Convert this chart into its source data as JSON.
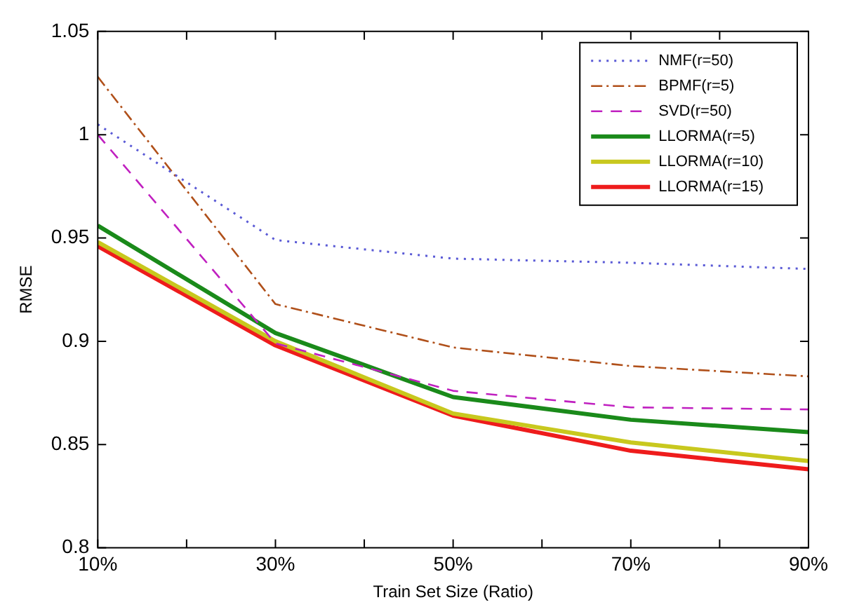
{
  "chart_data": {
    "type": "line",
    "xlabel": "Train Set Size (Ratio)",
    "ylabel": "RMSE",
    "x": [
      10,
      30,
      50,
      70,
      90
    ],
    "xlim": [
      10,
      90
    ],
    "xticks": [
      {
        "value": 10,
        "label": "10%"
      },
      {
        "value": 20,
        "label": null
      },
      {
        "value": 30,
        "label": "30%"
      },
      {
        "value": 40,
        "label": null
      },
      {
        "value": 50,
        "label": "50%"
      },
      {
        "value": 60,
        "label": null
      },
      {
        "value": 70,
        "label": "70%"
      },
      {
        "value": 80,
        "label": null
      },
      {
        "value": 90,
        "label": "90%"
      }
    ],
    "ylim": [
      0.8,
      1.05
    ],
    "yticks": [
      0.8,
      0.85,
      0.9,
      0.95,
      1,
      1.05
    ],
    "grid": false,
    "legend": "top right",
    "marker": "none",
    "series": [
      {
        "name": "NMF(r=50)",
        "color": "#5a5ad6",
        "line_style": "dotted",
        "values": [
          1.005,
          0.949,
          0.94,
          0.938,
          0.935
        ]
      },
      {
        "name": "BPMF(r=5)",
        "color": "#b0501a",
        "line_style": "dashdot",
        "values": [
          1.028,
          0.918,
          0.897,
          0.888,
          0.883
        ]
      },
      {
        "name": "SVD(r=50)",
        "color": "#c020c0",
        "line_style": "dashed",
        "values": [
          1.0,
          0.899,
          0.876,
          0.868,
          0.867
        ]
      },
      {
        "name": "LLORMA(r=5)",
        "color": "#1a8a1a",
        "line_style": "solid",
        "values": [
          0.956,
          0.904,
          0.873,
          0.862,
          0.856
        ]
      },
      {
        "name": "LLORMA(r=10)",
        "color": "#c8c81e",
        "line_style": "solid",
        "values": [
          0.948,
          0.9,
          0.865,
          0.851,
          0.842
        ]
      },
      {
        "name": "LLORMA(r=15)",
        "color": "#ee1c1c",
        "line_style": "solid",
        "values": [
          0.946,
          0.898,
          0.864,
          0.847,
          0.838
        ]
      }
    ]
  }
}
